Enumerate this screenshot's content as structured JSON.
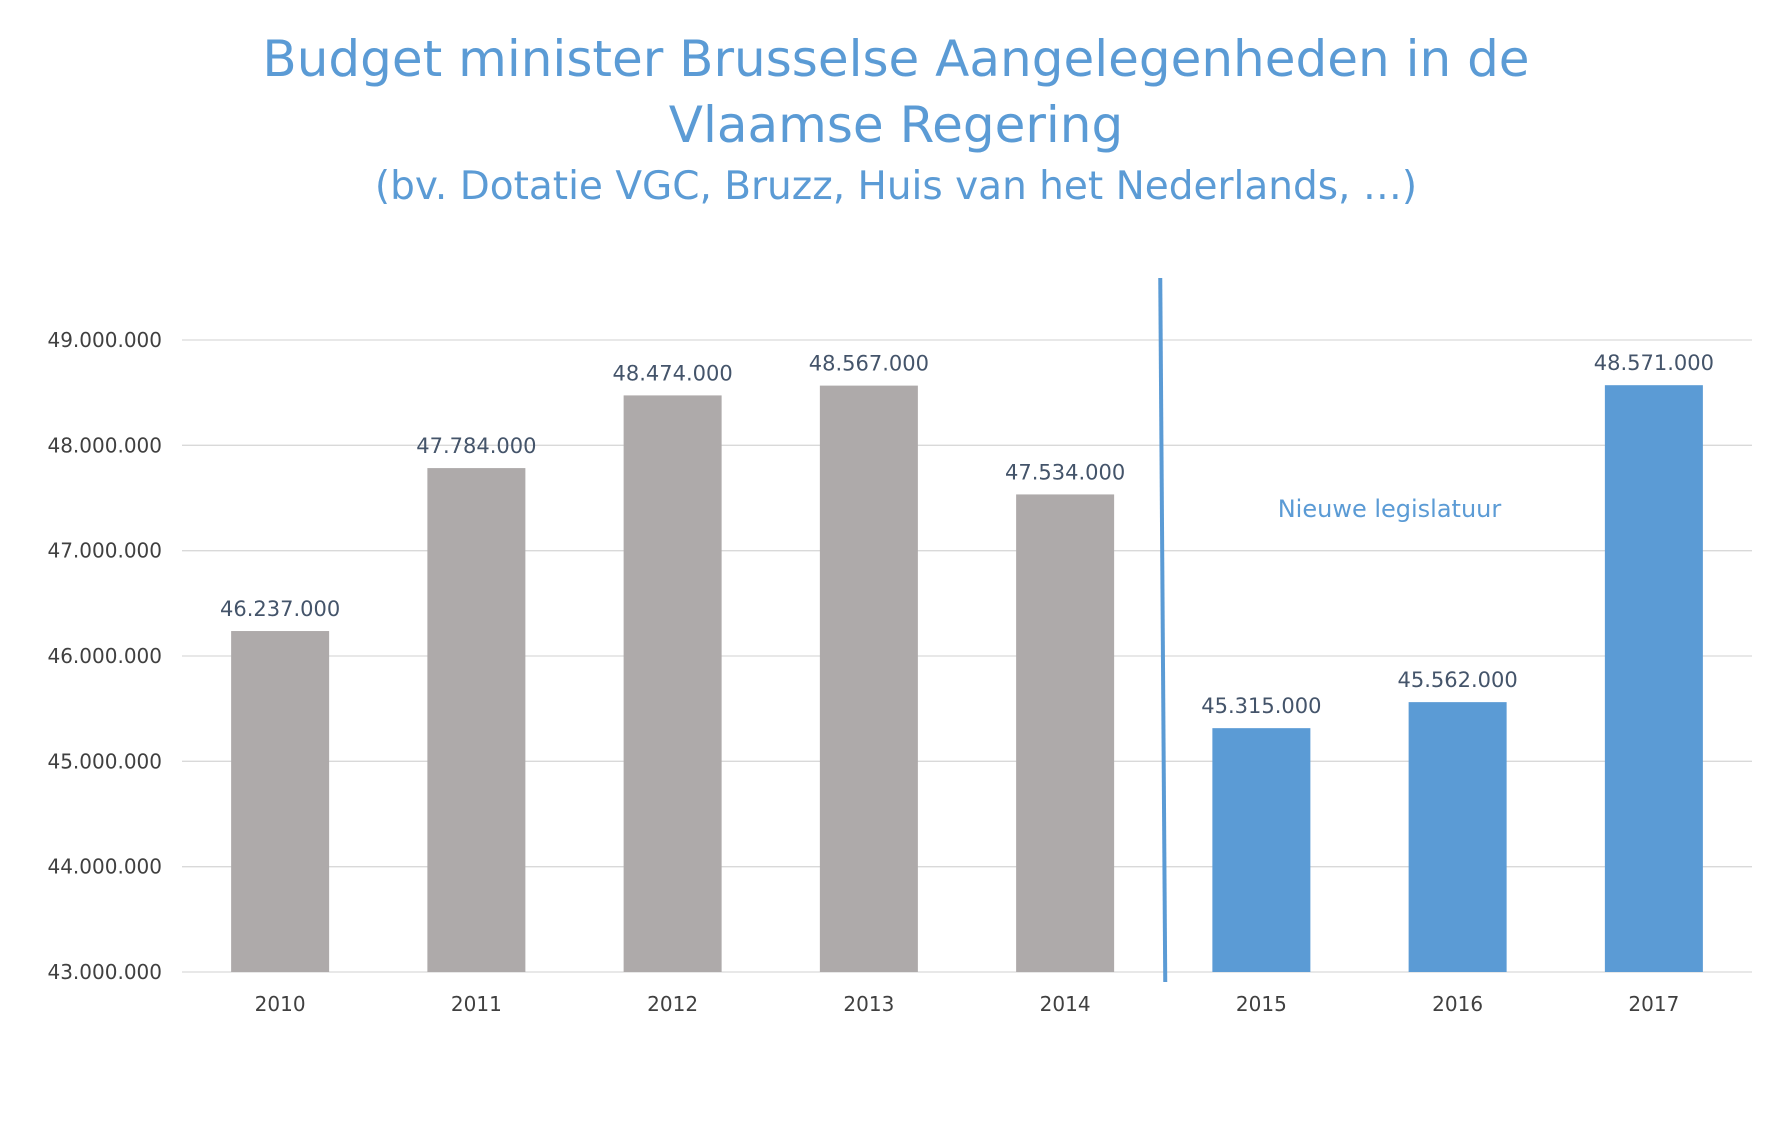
{
  "title_line1": "Budget minister Brusselse Aangelegenheden in de",
  "title_line2": "Vlaamse Regering",
  "subtitle": "(bv. Dotatie VGC, Bruzz, Huis van het Nederlands, …)",
  "annotation": "Nieuwe legislatuur",
  "colors": {
    "title": "#5b9bd5",
    "previous_legislature_bar": "#aeaaaa",
    "new_legislature_bar": "#5b9bd5",
    "divider": "#5b9bd5",
    "gridline": "#d9d9d9",
    "axis_text": "#404040",
    "data_label": "#44546a"
  },
  "chart_data": {
    "type": "bar",
    "title": "Budget minister Brusselse Aangelegenheden in de Vlaamse Regering",
    "subtitle": "(bv. Dotatie VGC, Bruzz, Huis van het Nederlands, …)",
    "categories": [
      "2010",
      "2011",
      "2012",
      "2013",
      "2014",
      "2015",
      "2016",
      "2017"
    ],
    "values": [
      46237000,
      47784000,
      48474000,
      48567000,
      47534000,
      45315000,
      45562000,
      48571000
    ],
    "value_labels": [
      "46.237.000",
      "47.784.000",
      "48.474.000",
      "48.567.000",
      "47.534.000",
      "45.315.000",
      "45.562.000",
      "48.571.000"
    ],
    "bar_groups": [
      "previous",
      "previous",
      "previous",
      "previous",
      "previous",
      "new",
      "new",
      "new"
    ],
    "ylim": [
      43000000,
      49000000
    ],
    "yticks": [
      43000000,
      44000000,
      45000000,
      46000000,
      47000000,
      48000000,
      49000000
    ],
    "ytick_labels": [
      "43.000.000",
      "44.000.000",
      "45.000.000",
      "46.000.000",
      "47.000.000",
      "48.000.000",
      "49.000.000"
    ],
    "xlabel": "",
    "ylabel": "",
    "grid": true,
    "legend": "none",
    "divider_between": [
      "2014",
      "2015"
    ],
    "annotation": "Nieuwe legislatuur"
  }
}
